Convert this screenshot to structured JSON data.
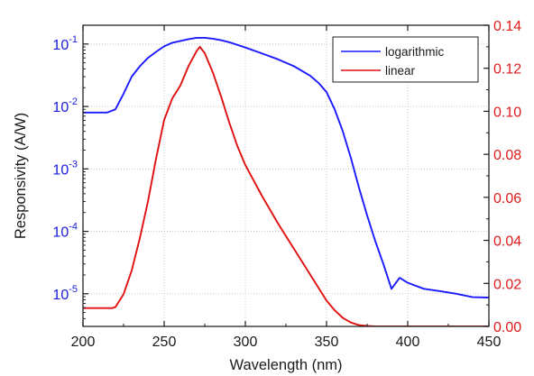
{
  "chart_data": {
    "type": "line",
    "xlabel": "Wavelength (nm)",
    "ylabel_left": "Responsivity (A/W)",
    "xlim": [
      200,
      450
    ],
    "ylim_left": [
      3e-06,
      0.2
    ],
    "yscale_left": "log",
    "ylim_right": [
      0,
      0.14
    ],
    "yscale_right": "linear",
    "grid": true,
    "legend_position": "top-right",
    "x_ticks": [
      200,
      250,
      300,
      350,
      400,
      450
    ],
    "y_left_ticks": [
      {
        "value": 0.1,
        "mantissa": "10",
        "exp": "-1"
      },
      {
        "value": 0.01,
        "mantissa": "10",
        "exp": "-2"
      },
      {
        "value": 0.001,
        "mantissa": "10",
        "exp": "-3"
      },
      {
        "value": 0.0001,
        "mantissa": "10",
        "exp": "-4"
      },
      {
        "value": 1e-05,
        "mantissa": "10",
        "exp": "-5"
      }
    ],
    "y_right_ticks": [
      "0.00",
      "0.02",
      "0.04",
      "0.06",
      "0.08",
      "0.10",
      "0.12",
      "0.14"
    ],
    "colors": {
      "left_axis": "#1a1adb",
      "right_axis": "#dd1a1a",
      "axis": "#1a1a1a"
    },
    "series": [
      {
        "name": "logarithmic",
        "axis": "left",
        "color": "#1a1aff",
        "x": [
          200,
          210,
          215,
          220,
          225,
          230,
          235,
          240,
          245,
          250,
          255,
          260,
          265,
          270,
          275,
          280,
          285,
          290,
          300,
          310,
          320,
          330,
          340,
          345,
          350,
          355,
          360,
          365,
          370,
          375,
          380,
          385,
          390,
          395,
          400,
          410,
          420,
          430,
          440,
          450
        ],
        "y": [
          0.008,
          0.008,
          0.008,
          0.009,
          0.016,
          0.03,
          0.044,
          0.06,
          0.075,
          0.092,
          0.105,
          0.112,
          0.12,
          0.126,
          0.126,
          0.122,
          0.115,
          0.107,
          0.088,
          0.071,
          0.057,
          0.044,
          0.031,
          0.024,
          0.017,
          0.009,
          0.004,
          0.0015,
          0.0005,
          0.00018,
          7e-05,
          3e-05,
          1.2e-05,
          1.8e-05,
          1.5e-05,
          1.2e-05,
          1.1e-05,
          1e-05,
          8.8e-06,
          8.7e-06
        ]
      },
      {
        "name": "linear",
        "axis": "right",
        "color": "#e01010",
        "x": [
          200,
          210,
          215,
          218,
          220,
          225,
          230,
          235,
          240,
          245,
          250,
          255,
          260,
          265,
          270,
          272,
          275,
          280,
          285,
          290,
          295,
          300,
          310,
          320,
          330,
          340,
          350,
          355,
          360,
          365,
          370,
          375,
          380,
          390,
          400,
          420,
          450
        ],
        "y": [
          0.0085,
          0.0085,
          0.0085,
          0.0085,
          0.009,
          0.015,
          0.026,
          0.041,
          0.058,
          0.078,
          0.096,
          0.106,
          0.112,
          0.121,
          0.128,
          0.13,
          0.127,
          0.118,
          0.107,
          0.095,
          0.084,
          0.075,
          0.061,
          0.048,
          0.036,
          0.024,
          0.012,
          0.0075,
          0.004,
          0.0018,
          0.0006,
          0.0002,
          0,
          0,
          0,
          0,
          0
        ]
      }
    ]
  }
}
